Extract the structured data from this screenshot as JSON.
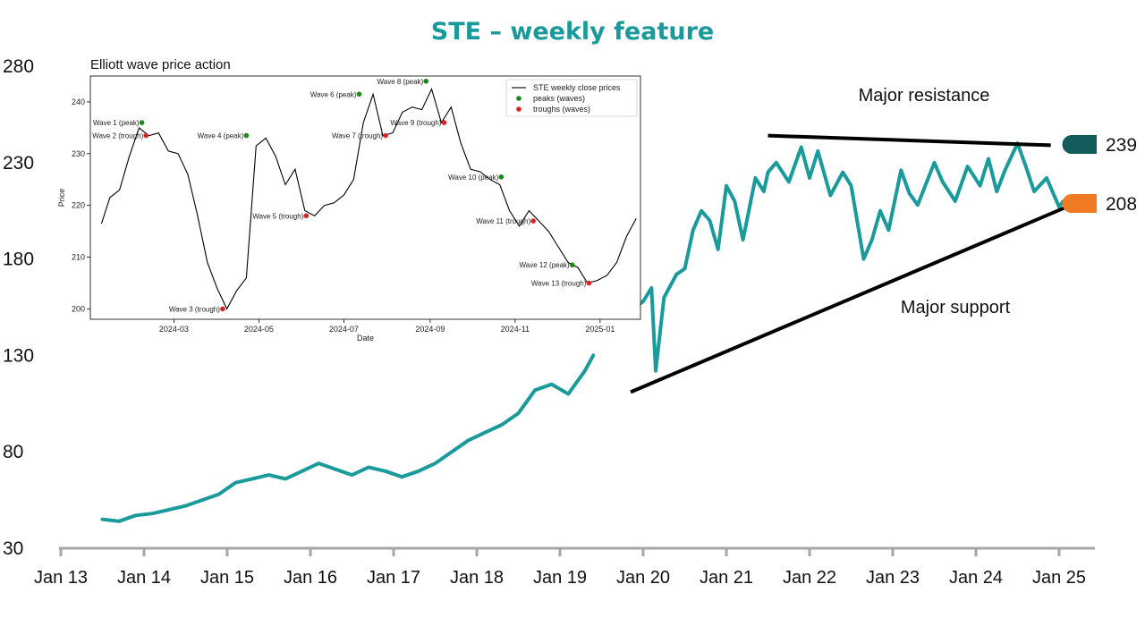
{
  "chart_data": [
    {
      "type": "line",
      "title": "STE – weekly feature",
      "x_ticks": [
        "Jan 13",
        "Jan 14",
        "Jan 15",
        "Jan 16",
        "Jan 17",
        "Jan 18",
        "Jan 19",
        "Jan 20",
        "Jan 21",
        "Jan 22",
        "Jan 23",
        "Jan 24",
        "Jan 25"
      ],
      "y_ticks": [
        30,
        80,
        130,
        180,
        230,
        280
      ],
      "ylim": [
        30,
        280
      ],
      "series_colors": {
        "price": "#1a9a9a",
        "trendline": "#000000"
      },
      "segments": [
        {
          "name": "2013-2019",
          "x": [
            2013.5,
            2013.7,
            2013.9,
            2014.1,
            2014.3,
            2014.5,
            2014.7,
            2014.9,
            2015.1,
            2015.3,
            2015.5,
            2015.7,
            2015.9,
            2016.1,
            2016.3,
            2016.5,
            2016.7,
            2016.9,
            2017.1,
            2017.3,
            2017.5,
            2017.7,
            2017.9,
            2018.1,
            2018.3,
            2018.5,
            2018.7,
            2018.9,
            2019.1,
            2019.3,
            2019.4
          ],
          "y": [
            45,
            44,
            47,
            48,
            50,
            52,
            55,
            58,
            64,
            66,
            68,
            66,
            70,
            74,
            71,
            68,
            72,
            70,
            67,
            70,
            74,
            80,
            86,
            90,
            94,
            100,
            112,
            115,
            110,
            122,
            130
          ]
        },
        {
          "name": "2020-2025",
          "x": [
            2019.9,
            2020.0,
            2020.1,
            2020.15,
            2020.25,
            2020.4,
            2020.5,
            2020.6,
            2020.7,
            2020.8,
            2020.9,
            2021.0,
            2021.1,
            2021.2,
            2021.35,
            2021.45,
            2021.5,
            2021.6,
            2021.75,
            2021.9,
            2022.0,
            2022.1,
            2022.25,
            2022.4,
            2022.5,
            2022.65,
            2022.75,
            2022.85,
            2022.95,
            2023.1,
            2023.2,
            2023.3,
            2023.5,
            2023.6,
            2023.75,
            2023.9,
            2024.05,
            2024.15,
            2024.25,
            2024.35,
            2024.5,
            2024.6,
            2024.7,
            2024.85,
            2025.0,
            2025.05
          ],
          "y": [
            155,
            158,
            165,
            122,
            160,
            172,
            175,
            195,
            205,
            200,
            185,
            218,
            210,
            190,
            222,
            215,
            225,
            230,
            220,
            238,
            222,
            236,
            213,
            225,
            218,
            180,
            190,
            205,
            195,
            226,
            214,
            208,
            230,
            220,
            210,
            228,
            218,
            232,
            215,
            226,
            240,
            228,
            215,
            222,
            207,
            210
          ]
        }
      ],
      "annotations": [
        {
          "text": "Major resistance"
        },
        {
          "text": "Major support"
        }
      ],
      "trendlines": [
        {
          "name": "Major resistance",
          "x": [
            2021.5,
            2024.9
          ],
          "y": [
            244,
            239
          ]
        },
        {
          "name": "Major support",
          "x": [
            2019.85,
            2025.2
          ],
          "y": [
            111,
            209
          ]
        }
      ],
      "level_tags": [
        {
          "value": "239",
          "color": "#135c5c"
        },
        {
          "value": "208",
          "color": "#f07b22"
        }
      ]
    },
    {
      "type": "line",
      "title": "Elliott wave price action",
      "xlabel": "Date",
      "ylabel": "Price",
      "x_ticks": [
        "2024-03",
        "2024-05",
        "2024-07",
        "2024-09",
        "2024-11",
        "2025-01"
      ],
      "x_tick_positions": [
        60,
        121,
        182,
        244,
        305,
        366
      ],
      "y_ticks": [
        200,
        210,
        220,
        230,
        240
      ],
      "xlim": [
        0,
        395
      ],
      "ylim": [
        198,
        245
      ],
      "grid": false,
      "legend_position": "top-right",
      "legend": [
        "STE weekly close prices",
        "peaks (waves)",
        "troughs (waves)"
      ],
      "colors": {
        "line": "#000000",
        "peak": "#1a8a1a",
        "trough": "#dd2222"
      },
      "x": [
        8,
        14,
        21,
        28,
        35,
        42,
        49,
        56,
        63,
        70,
        77,
        84,
        91,
        98,
        105,
        112,
        119,
        126,
        133,
        140,
        147,
        154,
        161,
        168,
        175,
        182,
        189,
        196,
        203,
        210,
        217,
        224,
        231,
        238,
        245,
        252,
        259,
        266,
        273,
        280,
        287,
        294,
        301,
        308,
        315,
        322,
        329,
        336,
        343,
        350,
        357,
        364,
        371,
        378,
        385,
        392
      ],
      "y": [
        216.5,
        221.5,
        223,
        229.5,
        235,
        233.5,
        234,
        230.5,
        230,
        226,
        218,
        209,
        204,
        200,
        203.5,
        206,
        231.5,
        233,
        229.5,
        224,
        227,
        219,
        218,
        220,
        220.5,
        222,
        225,
        236,
        241.5,
        233.5,
        234,
        238,
        239,
        238.5,
        242.5,
        236,
        239,
        232,
        227,
        226.5,
        225,
        224,
        219,
        216,
        219,
        217,
        215,
        212,
        209,
        208,
        205,
        205.5,
        206.5,
        209,
        214,
        217.5
      ],
      "peaks": [
        {
          "label": "Wave 1 (peak)",
          "x": 37,
          "y": 236
        },
        {
          "label": "Wave 4 (peak)",
          "x": 112,
          "y": 233.5
        },
        {
          "label": "Wave 6 (peak)",
          "x": 193,
          "y": 241.5
        },
        {
          "label": "Wave 8 (peak)",
          "x": 241,
          "y": 244
        },
        {
          "label": "Wave 10 (peak)",
          "x": 295,
          "y": 225.5
        },
        {
          "label": "Wave 12 (peak)",
          "x": 346,
          "y": 208.5
        }
      ],
      "troughs": [
        {
          "label": "Wave 2 (trough)",
          "x": 40,
          "y": 233.5
        },
        {
          "label": "Wave 3 (trough)",
          "x": 95,
          "y": 200
        },
        {
          "label": "Wave 5 (trough)",
          "x": 155,
          "y": 218
        },
        {
          "label": "Wave 7 (trough)",
          "x": 212,
          "y": 233.5
        },
        {
          "label": "Wave 9 (trough)",
          "x": 254,
          "y": 236
        },
        {
          "label": "Wave 11 (trough)",
          "x": 318,
          "y": 217
        },
        {
          "label": "Wave 13 (trough)",
          "x": 358,
          "y": 205
        }
      ]
    }
  ]
}
